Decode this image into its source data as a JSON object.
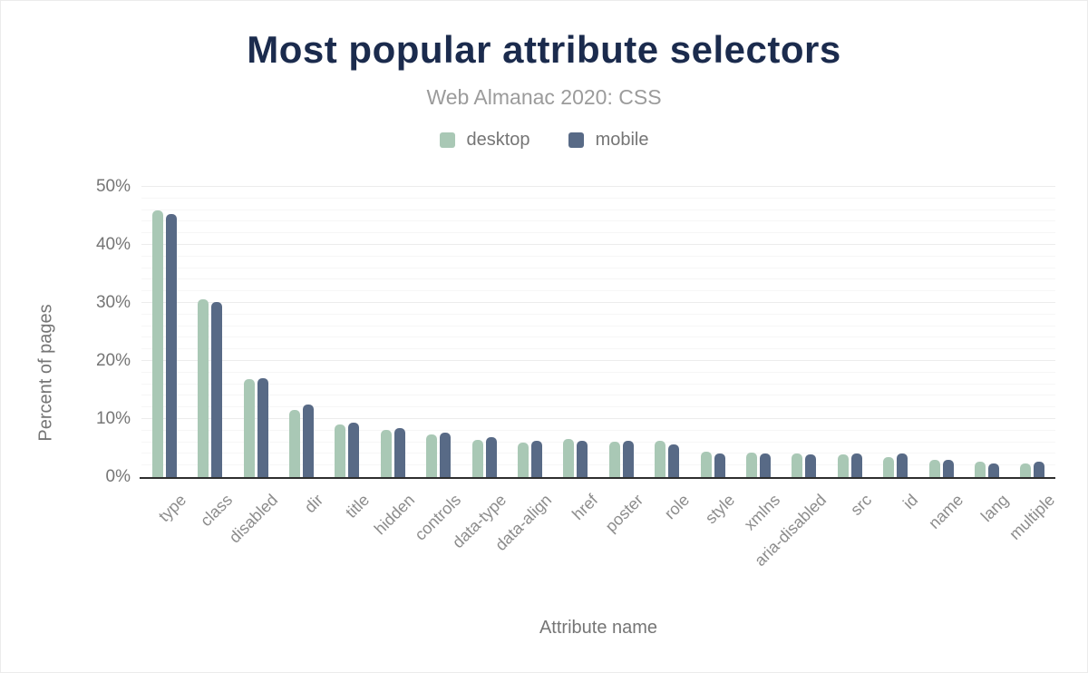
{
  "chart_data": {
    "type": "bar",
    "title": "Most popular attribute selectors",
    "subtitle": "Web Almanac 2020: CSS",
    "xlabel": "Attribute name",
    "ylabel": "Percent of pages",
    "ylim": [
      0,
      50
    ],
    "yticks": [
      0,
      10,
      20,
      30,
      40,
      50
    ],
    "ytick_suffix": "%",
    "grid": {
      "minor_every": 2,
      "major_every": 10,
      "visible": true
    },
    "legend_position": "top",
    "categories": [
      "type",
      "class",
      "disabled",
      "dir",
      "title",
      "hidden",
      "controls",
      "data-type",
      "data-align",
      "href",
      "poster",
      "role",
      "style",
      "xmlns",
      "aria-disabled",
      "src",
      "id",
      "name",
      "lang",
      "multiple"
    ],
    "series": [
      {
        "name": "desktop",
        "color": "#a9c8b5",
        "values": [
          46.0,
          30.6,
          16.9,
          11.5,
          9.1,
          8.1,
          7.3,
          6.4,
          6.0,
          6.5,
          6.1,
          6.3,
          4.4,
          4.2,
          4.0,
          3.9,
          3.5,
          2.9,
          2.6,
          2.4
        ]
      },
      {
        "name": "mobile",
        "color": "#586a86",
        "values": [
          45.3,
          30.2,
          17.0,
          12.5,
          9.4,
          8.5,
          7.6,
          6.9,
          6.3,
          6.2,
          6.3,
          5.6,
          4.1,
          4.1,
          3.9,
          4.0,
          4.0,
          3.0,
          2.3,
          2.6
        ]
      }
    ],
    "colors": {
      "title": "#1b2b4d",
      "subtitle": "#9b9b9b",
      "axis_text": "#757575",
      "category_text": "#8c8c8c",
      "baseline": "#2e2e2e"
    }
  }
}
